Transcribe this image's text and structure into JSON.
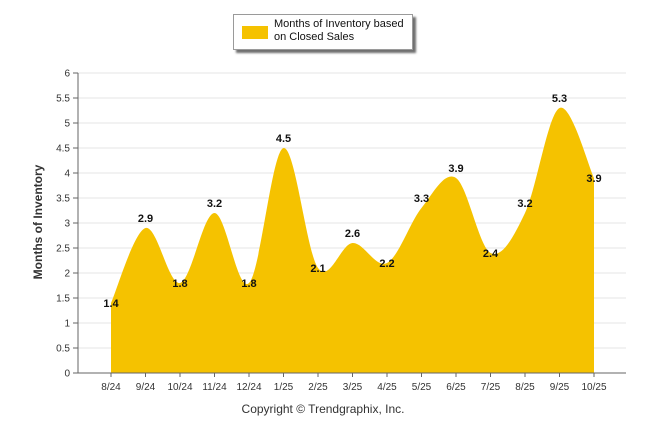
{
  "chart_data": {
    "type": "area",
    "title": "",
    "legend": [
      "Months of Inventory based on Closed Sales"
    ],
    "legend_position": "top-center",
    "categories": [
      "8/24",
      "9/24",
      "10/24",
      "11/24",
      "12/24",
      "1/25",
      "2/25",
      "3/25",
      "4/25",
      "5/25",
      "6/25",
      "7/25",
      "8/25",
      "9/25",
      "10/25"
    ],
    "series": [
      {
        "name": "Months of Inventory based on Closed Sales",
        "values": [
          1.4,
          2.9,
          1.8,
          3.2,
          1.8,
          4.5,
          2.1,
          2.6,
          2.2,
          3.3,
          3.9,
          2.4,
          3.2,
          5.3,
          3.9
        ],
        "labels": [
          "1.4",
          "2.9",
          "1.8",
          "3.2",
          "1.8",
          "4.5",
          "2.1",
          "2.6",
          "2.2",
          "3.3",
          "3.9",
          "2.4",
          "3.2",
          "5.3",
          "3.9"
        ],
        "color": "#F5C200"
      }
    ],
    "xlabel": "",
    "ylabel": "Months of Inventory",
    "ylim": [
      0,
      6
    ],
    "yticks": [
      "0",
      "0.5",
      "1",
      "1.5",
      "2",
      "2.5",
      "3",
      "3.5",
      "4",
      "4.5",
      "5",
      "5.5",
      "6"
    ],
    "grid": true
  },
  "legend_label": "Months of Inventory based on Closed Sales",
  "footer": {
    "copyright": "Copyright © Trendgraphix, Inc."
  },
  "colors": {
    "area": "#F5C200",
    "grid": "#e6e6e6",
    "axis": "#666666"
  }
}
